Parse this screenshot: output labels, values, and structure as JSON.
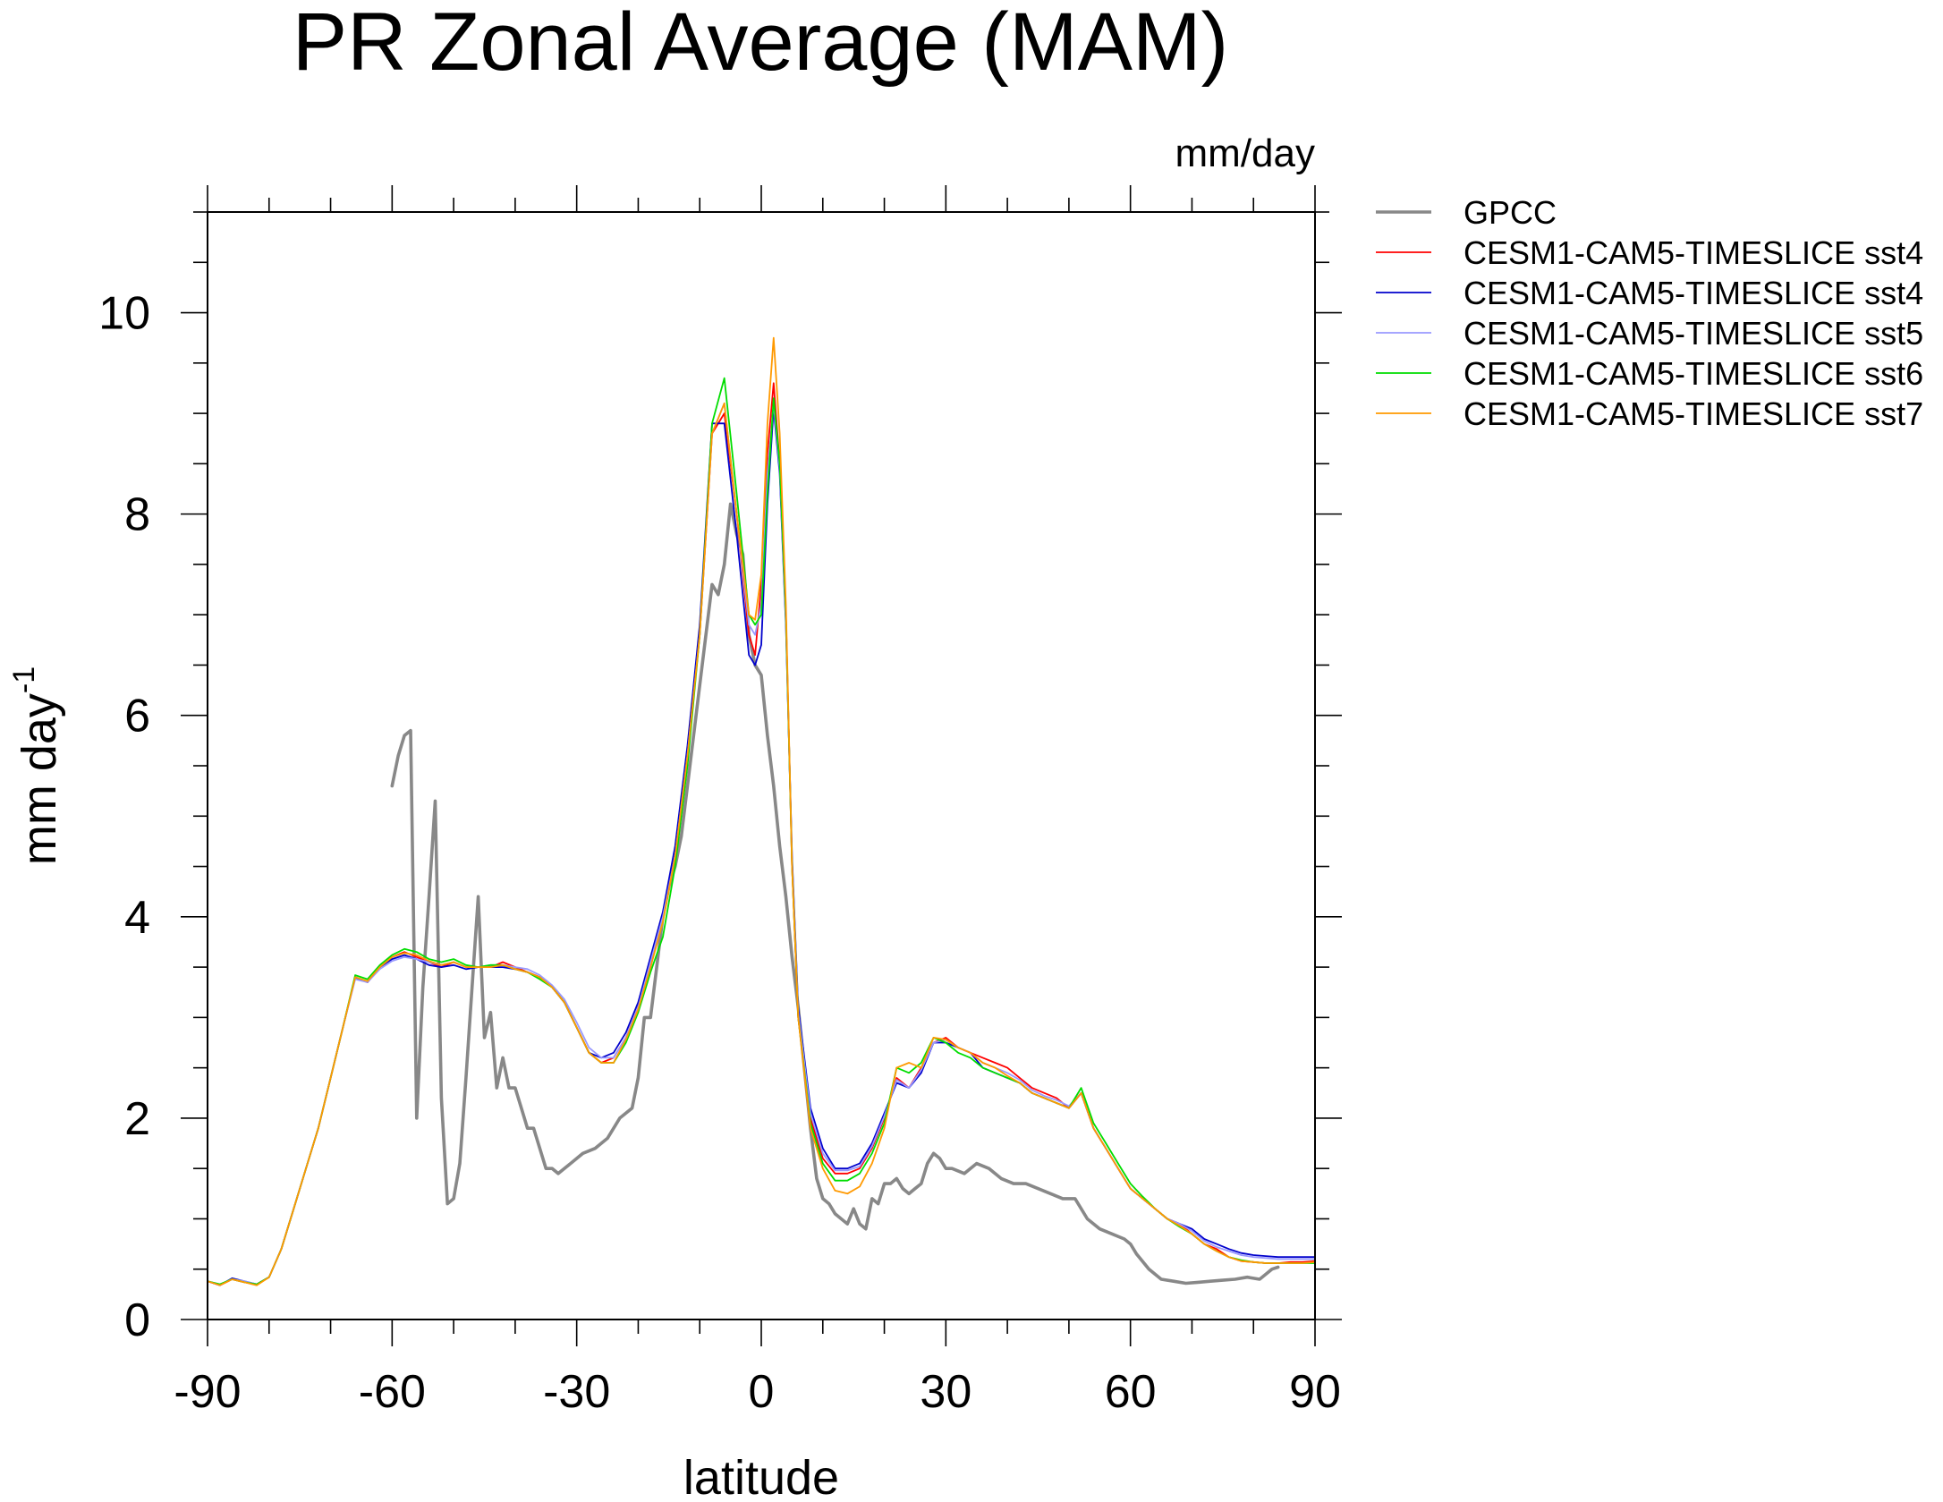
{
  "chart_data": {
    "type": "line",
    "title": "PR Zonal Average (MAM)",
    "units": "mm/day",
    "xlabel": "latitude",
    "ylabel": "mm day",
    "ylabel_superscript": "-1",
    "xlim": [
      -90,
      90
    ],
    "ylim": [
      0,
      11
    ],
    "xticks": [
      -90,
      -60,
      -30,
      0,
      30,
      60,
      90
    ],
    "xtick_labels": [
      "-90",
      "-60",
      "-30",
      "0",
      "30",
      "60",
      "90"
    ],
    "yticks": [
      0,
      2,
      4,
      6,
      8,
      10
    ],
    "ytick_labels": [
      "0",
      "2",
      "4",
      "6",
      "8",
      "10"
    ],
    "legend_position": "right, outside plot",
    "series": [
      {
        "name": "GPCC",
        "color": "#888888",
        "x": [
          -60,
          -59,
          -58,
          -57,
          -56,
          -55,
          -54,
          -53,
          -52,
          -51,
          -50,
          -49,
          -48,
          -47,
          -46,
          -45,
          -44,
          -43,
          -42,
          -41,
          -40,
          -39,
          -38,
          -37,
          -36,
          -35,
          -34,
          -33,
          -31,
          -29,
          -27,
          -25,
          -23,
          -21,
          -20,
          -19,
          -18,
          -17,
          -16,
          -15,
          -14,
          -13,
          -12,
          -10,
          -8,
          -7,
          -6,
          -5,
          -4,
          -3,
          -2,
          -1,
          0,
          1,
          2,
          3,
          4,
          5,
          6,
          7,
          8,
          9,
          10,
          11,
          12,
          13,
          14,
          15,
          16,
          17,
          18,
          19,
          20,
          21,
          22,
          23,
          24,
          25,
          26,
          27,
          28,
          29,
          30,
          31,
          33,
          35,
          37,
          39,
          41,
          43,
          45,
          47,
          49,
          51,
          53,
          55,
          57,
          59,
          60,
          61,
          63,
          65,
          67,
          69,
          71,
          73,
          75,
          77,
          79,
          81,
          82,
          83,
          84
        ],
        "y": [
          5.3,
          5.6,
          5.8,
          5.85,
          2.0,
          3.3,
          4.2,
          5.15,
          2.2,
          1.15,
          1.2,
          1.55,
          2.4,
          3.3,
          4.2,
          2.8,
          3.05,
          2.3,
          2.6,
          2.3,
          2.3,
          2.1,
          1.9,
          1.9,
          1.7,
          1.5,
          1.5,
          1.45,
          1.55,
          1.65,
          1.7,
          1.8,
          2.0,
          2.1,
          2.4,
          3.0,
          3.0,
          3.5,
          4.0,
          4.3,
          4.5,
          4.8,
          5.3,
          6.3,
          7.3,
          7.2,
          7.5,
          8.1,
          7.8,
          7.6,
          6.8,
          6.5,
          6.4,
          5.8,
          5.3,
          4.7,
          4.2,
          3.6,
          3.1,
          2.5,
          1.9,
          1.4,
          1.2,
          1.15,
          1.05,
          1.0,
          0.95,
          1.1,
          0.95,
          0.9,
          1.2,
          1.15,
          1.35,
          1.35,
          1.4,
          1.3,
          1.25,
          1.3,
          1.35,
          1.55,
          1.65,
          1.6,
          1.5,
          1.5,
          1.45,
          1.55,
          1.5,
          1.4,
          1.35,
          1.35,
          1.3,
          1.25,
          1.2,
          1.2,
          1.0,
          0.9,
          0.85,
          0.8,
          0.75,
          0.65,
          0.5,
          0.4,
          0.38,
          0.36,
          0.37,
          0.38,
          0.39,
          0.4,
          0.42,
          0.4,
          0.45,
          0.5,
          0.52
        ]
      },
      {
        "name": "CESM1-CAM5-TIMESLICE sst4",
        "color": "#ff0000",
        "x": [
          -90,
          -88,
          -86,
          -84,
          -82,
          -80,
          -78,
          -76,
          -74,
          -72,
          -70,
          -68,
          -66,
          -64,
          -62,
          -60,
          -58,
          -56,
          -54,
          -52,
          -50,
          -48,
          -46,
          -44,
          -42,
          -40,
          -38,
          -36,
          -34,
          -32,
          -30,
          -28,
          -26,
          -24,
          -22,
          -20,
          -18,
          -16,
          -14,
          -12,
          -10,
          -8,
          -6,
          -4,
          -2,
          -1,
          0,
          1,
          2,
          3,
          4,
          5,
          6,
          8,
          10,
          12,
          14,
          16,
          18,
          20,
          22,
          24,
          26,
          28,
          30,
          32,
          34,
          36,
          38,
          40,
          42,
          44,
          46,
          48,
          50,
          52,
          54,
          56,
          58,
          60,
          62,
          64,
          66,
          68,
          70,
          72,
          74,
          76,
          78,
          80,
          82,
          84,
          86,
          88,
          90
        ],
        "y": [
          0.38,
          0.34,
          0.4,
          0.37,
          0.35,
          0.42,
          0.7,
          1.1,
          1.5,
          1.9,
          2.4,
          2.9,
          3.4,
          3.35,
          3.5,
          3.6,
          3.65,
          3.6,
          3.55,
          3.5,
          3.55,
          3.5,
          3.5,
          3.5,
          3.55,
          3.5,
          3.45,
          3.4,
          3.3,
          3.15,
          2.9,
          2.65,
          2.55,
          2.6,
          2.8,
          3.1,
          3.5,
          4.0,
          4.6,
          5.6,
          6.8,
          8.8,
          9.0,
          8.0,
          6.8,
          6.6,
          7.3,
          8.6,
          9.3,
          8.5,
          7.0,
          4.5,
          3.0,
          2.0,
          1.6,
          1.45,
          1.45,
          1.5,
          1.7,
          2.0,
          2.4,
          2.3,
          2.5,
          2.75,
          2.8,
          2.7,
          2.65,
          2.6,
          2.55,
          2.5,
          2.4,
          2.3,
          2.25,
          2.2,
          2.1,
          2.25,
          1.9,
          1.7,
          1.5,
          1.3,
          1.2,
          1.1,
          1.0,
          0.95,
          0.85,
          0.75,
          0.7,
          0.62,
          0.58,
          0.57,
          0.56,
          0.56,
          0.57,
          0.57,
          0.58
        ]
      },
      {
        "name": "CESM1-CAM5-TIMESLICE sst4",
        "color": "#0000cc",
        "x": [
          -90,
          -88,
          -86,
          -84,
          -82,
          -80,
          -78,
          -76,
          -74,
          -72,
          -70,
          -68,
          -66,
          -64,
          -62,
          -60,
          -58,
          -56,
          -54,
          -52,
          -50,
          -48,
          -46,
          -44,
          -42,
          -40,
          -38,
          -36,
          -34,
          -32,
          -30,
          -28,
          -26,
          -24,
          -22,
          -20,
          -18,
          -16,
          -14,
          -12,
          -10,
          -8,
          -6,
          -4,
          -2,
          -1,
          0,
          1,
          2,
          3,
          4,
          5,
          6,
          8,
          10,
          12,
          14,
          16,
          18,
          20,
          22,
          24,
          26,
          28,
          30,
          32,
          34,
          36,
          38,
          40,
          42,
          44,
          46,
          48,
          50,
          52,
          54,
          56,
          58,
          60,
          62,
          64,
          66,
          68,
          70,
          72,
          74,
          76,
          78,
          80,
          82,
          84,
          86,
          88,
          90
        ],
        "y": [
          0.38,
          0.34,
          0.41,
          0.38,
          0.35,
          0.42,
          0.7,
          1.1,
          1.5,
          1.9,
          2.4,
          2.9,
          3.4,
          3.35,
          3.5,
          3.58,
          3.62,
          3.58,
          3.52,
          3.5,
          3.52,
          3.48,
          3.5,
          3.5,
          3.5,
          3.48,
          3.45,
          3.4,
          3.3,
          3.15,
          2.9,
          2.65,
          2.6,
          2.65,
          2.85,
          3.15,
          3.6,
          4.05,
          4.7,
          5.7,
          6.9,
          8.9,
          8.9,
          7.8,
          6.6,
          6.5,
          6.7,
          8.1,
          9.05,
          8.4,
          6.9,
          4.6,
          3.1,
          2.1,
          1.7,
          1.5,
          1.5,
          1.55,
          1.75,
          2.05,
          2.35,
          2.3,
          2.45,
          2.75,
          2.75,
          2.7,
          2.65,
          2.5,
          2.45,
          2.4,
          2.35,
          2.25,
          2.2,
          2.15,
          2.1,
          2.25,
          1.9,
          1.7,
          1.5,
          1.3,
          1.2,
          1.1,
          1.0,
          0.95,
          0.9,
          0.8,
          0.75,
          0.7,
          0.66,
          0.64,
          0.63,
          0.62,
          0.62,
          0.62,
          0.62
        ]
      },
      {
        "name": "CESM1-CAM5-TIMESLICE sst5",
        "color": "#9999ff",
        "x": [
          -90,
          -88,
          -86,
          -84,
          -82,
          -80,
          -78,
          -76,
          -74,
          -72,
          -70,
          -68,
          -66,
          -64,
          -62,
          -60,
          -58,
          -56,
          -54,
          -52,
          -50,
          -48,
          -46,
          -44,
          -42,
          -40,
          -38,
          -36,
          -34,
          -32,
          -30,
          -28,
          -26,
          -24,
          -22,
          -20,
          -18,
          -16,
          -14,
          -12,
          -10,
          -8,
          -6,
          -4,
          -2,
          -1,
          0,
          1,
          2,
          3,
          4,
          5,
          6,
          8,
          10,
          12,
          14,
          16,
          18,
          20,
          22,
          24,
          26,
          28,
          30,
          32,
          34,
          36,
          38,
          40,
          42,
          44,
          46,
          48,
          50,
          52,
          54,
          56,
          58,
          60,
          62,
          64,
          66,
          68,
          70,
          72,
          74,
          76,
          78,
          80,
          82,
          84,
          86,
          88,
          90
        ],
        "y": [
          0.38,
          0.35,
          0.4,
          0.38,
          0.35,
          0.42,
          0.7,
          1.1,
          1.5,
          1.9,
          2.4,
          2.9,
          3.38,
          3.35,
          3.48,
          3.56,
          3.6,
          3.58,
          3.55,
          3.52,
          3.55,
          3.5,
          3.5,
          3.52,
          3.52,
          3.5,
          3.48,
          3.42,
          3.32,
          3.18,
          2.95,
          2.7,
          2.6,
          2.6,
          2.8,
          3.1,
          3.55,
          4.0,
          4.6,
          5.6,
          6.8,
          8.8,
          9.1,
          8.0,
          6.9,
          6.8,
          7.1,
          8.4,
          9.1,
          8.45,
          6.95,
          4.55,
          3.05,
          2.05,
          1.65,
          1.48,
          1.48,
          1.52,
          1.72,
          2.02,
          2.38,
          2.3,
          2.48,
          2.75,
          2.78,
          2.7,
          2.65,
          2.55,
          2.5,
          2.45,
          2.38,
          2.28,
          2.22,
          2.18,
          2.12,
          2.25,
          1.9,
          1.7,
          1.5,
          1.3,
          1.2,
          1.1,
          1.0,
          0.95,
          0.88,
          0.78,
          0.72,
          0.68,
          0.64,
          0.62,
          0.61,
          0.6,
          0.6,
          0.6,
          0.6
        ]
      },
      {
        "name": "CESM1-CAM5-TIMESLICE sst6",
        "color": "#00dd00",
        "x": [
          -90,
          -88,
          -86,
          -84,
          -82,
          -80,
          -78,
          -76,
          -74,
          -72,
          -70,
          -68,
          -66,
          -64,
          -62,
          -60,
          -58,
          -56,
          -54,
          -52,
          -50,
          -48,
          -46,
          -44,
          -42,
          -40,
          -38,
          -36,
          -34,
          -32,
          -30,
          -28,
          -26,
          -24,
          -22,
          -20,
          -18,
          -16,
          -14,
          -12,
          -10,
          -8,
          -6,
          -4,
          -2,
          -1,
          0,
          1,
          2,
          3,
          4,
          5,
          6,
          8,
          10,
          12,
          14,
          16,
          18,
          20,
          22,
          24,
          26,
          28,
          30,
          32,
          34,
          36,
          38,
          40,
          42,
          44,
          46,
          48,
          50,
          52,
          54,
          56,
          58,
          60,
          62,
          64,
          66,
          68,
          70,
          72,
          74,
          76,
          78,
          80,
          82,
          84,
          86,
          88,
          90
        ],
        "y": [
          0.38,
          0.35,
          0.4,
          0.37,
          0.35,
          0.42,
          0.7,
          1.1,
          1.5,
          1.9,
          2.4,
          2.9,
          3.42,
          3.38,
          3.52,
          3.62,
          3.68,
          3.65,
          3.58,
          3.55,
          3.58,
          3.52,
          3.5,
          3.52,
          3.52,
          3.48,
          3.45,
          3.38,
          3.3,
          3.15,
          2.9,
          2.65,
          2.55,
          2.55,
          2.75,
          3.05,
          3.45,
          3.8,
          4.5,
          5.5,
          6.8,
          8.9,
          9.35,
          8.2,
          7.0,
          6.9,
          7.0,
          8.2,
          9.15,
          8.5,
          7.0,
          4.5,
          3.0,
          1.95,
          1.55,
          1.38,
          1.38,
          1.45,
          1.65,
          1.95,
          2.5,
          2.45,
          2.55,
          2.8,
          2.75,
          2.65,
          2.6,
          2.5,
          2.45,
          2.4,
          2.35,
          2.25,
          2.2,
          2.15,
          2.1,
          2.3,
          1.95,
          1.75,
          1.55,
          1.35,
          1.22,
          1.1,
          1.0,
          0.92,
          0.85,
          0.75,
          0.68,
          0.62,
          0.59,
          0.57,
          0.56,
          0.56,
          0.56,
          0.56,
          0.56
        ]
      },
      {
        "name": "CESM1-CAM5-TIMESLICE sst7",
        "color": "#ff9900",
        "x": [
          -90,
          -88,
          -86,
          -84,
          -82,
          -80,
          -78,
          -76,
          -74,
          -72,
          -70,
          -68,
          -66,
          -64,
          -62,
          -60,
          -58,
          -56,
          -54,
          -52,
          -50,
          -48,
          -46,
          -44,
          -42,
          -40,
          -38,
          -36,
          -34,
          -32,
          -30,
          -28,
          -26,
          -24,
          -22,
          -20,
          -18,
          -16,
          -14,
          -12,
          -10,
          -8,
          -6,
          -4,
          -2,
          -1,
          0,
          1,
          2,
          3,
          4,
          5,
          6,
          8,
          10,
          12,
          14,
          16,
          18,
          20,
          22,
          24,
          26,
          28,
          30,
          32,
          34,
          36,
          38,
          40,
          42,
          44,
          46,
          48,
          50,
          52,
          54,
          56,
          58,
          60,
          62,
          64,
          66,
          68,
          70,
          72,
          74,
          76,
          78,
          80,
          82,
          84,
          86,
          88,
          90
        ],
        "y": [
          0.38,
          0.34,
          0.4,
          0.37,
          0.34,
          0.42,
          0.7,
          1.1,
          1.5,
          1.9,
          2.4,
          2.9,
          3.4,
          3.36,
          3.5,
          3.6,
          3.64,
          3.62,
          3.56,
          3.52,
          3.55,
          3.5,
          3.5,
          3.5,
          3.52,
          3.48,
          3.45,
          3.4,
          3.3,
          3.15,
          2.9,
          2.65,
          2.55,
          2.55,
          2.78,
          3.08,
          3.5,
          3.95,
          4.6,
          5.6,
          6.8,
          8.8,
          9.1,
          8.0,
          7.0,
          6.95,
          7.4,
          8.9,
          9.75,
          8.8,
          7.1,
          4.5,
          3.0,
          1.9,
          1.5,
          1.28,
          1.25,
          1.32,
          1.55,
          1.9,
          2.5,
          2.55,
          2.5,
          2.8,
          2.78,
          2.7,
          2.65,
          2.55,
          2.5,
          2.42,
          2.35,
          2.25,
          2.2,
          2.15,
          2.1,
          2.25,
          1.9,
          1.7,
          1.5,
          1.3,
          1.2,
          1.1,
          1.0,
          0.93,
          0.85,
          0.75,
          0.68,
          0.62,
          0.58,
          0.57,
          0.56,
          0.56,
          0.56,
          0.56,
          0.57
        ]
      }
    ]
  }
}
